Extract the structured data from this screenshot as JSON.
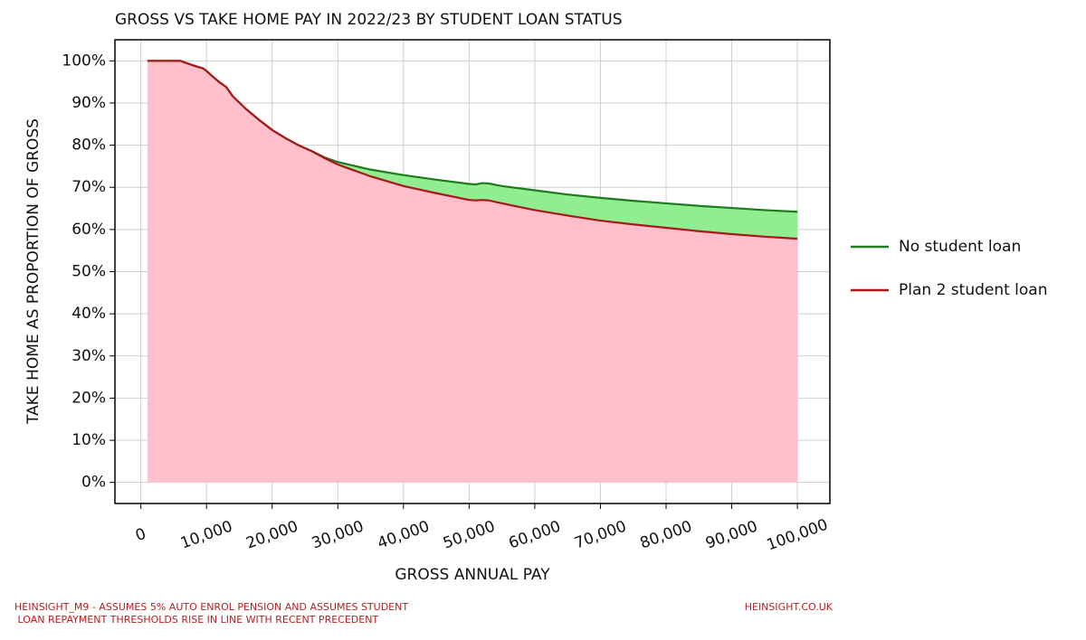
{
  "chart_data": {
    "type": "area",
    "title": "GROSS VS TAKE HOME PAY IN 2022/23 BY STUDENT LOAN STATUS",
    "x_label": "GROSS ANNUAL PAY",
    "y_label": "TAKE HOME AS PROPORTION OF GROSS",
    "x": [
      1000,
      6000,
      8000,
      9500,
      10000,
      11000,
      12000,
      13000,
      14000,
      16000,
      18000,
      20000,
      22000,
      24000,
      26000,
      28000,
      30000,
      35000,
      40000,
      45000,
      50000,
      51000,
      52000,
      53000,
      55000,
      60000,
      65000,
      70000,
      75000,
      80000,
      85000,
      90000,
      95000,
      100000
    ],
    "series": [
      {
        "name": "No student loan",
        "color": "#1f7a1f",
        "fill_color": "#90ee90",
        "values": [
          100,
          100,
          98.9,
          98.2,
          97.6,
          96.2,
          94.9,
          93.8,
          91.6,
          88.6,
          86.0,
          83.6,
          81.7,
          80.0,
          78.6,
          77.1,
          76.0,
          74.2,
          72.9,
          71.8,
          70.8,
          70.7,
          71.0,
          70.9,
          70.3,
          69.3,
          68.3,
          67.5,
          66.8,
          66.2,
          65.6,
          65.1,
          64.6,
          64.2
        ]
      },
      {
        "name": "Plan 2 student loan",
        "color": "#a81818",
        "fill_color": "#ffc0cb",
        "values": [
          100,
          100,
          98.9,
          98.2,
          97.6,
          96.2,
          94.9,
          93.8,
          91.6,
          88.6,
          86.0,
          83.6,
          81.7,
          80.0,
          78.6,
          76.9,
          75.4,
          72.6,
          70.3,
          68.6,
          67.0,
          66.9,
          67.0,
          66.9,
          66.2,
          64.6,
          63.3,
          62.1,
          61.2,
          60.4,
          59.6,
          58.9,
          58.3,
          57.8
        ]
      }
    ],
    "xlim": [
      -3950,
      104950
    ],
    "ylim": [
      -5,
      105
    ],
    "xticks": [
      0,
      {
        "value": 10000,
        "label": "10,000"
      },
      {
        "value": 20000,
        "label": "20,000"
      },
      {
        "value": 30000,
        "label": "30,000"
      },
      {
        "value": 40000,
        "label": "40,000"
      },
      {
        "value": 50000,
        "label": "50,000"
      },
      {
        "value": 60000,
        "label": "60,000"
      },
      {
        "value": 70000,
        "label": "70,000"
      },
      {
        "value": 80000,
        "label": "80,000"
      },
      {
        "value": 90000,
        "label": "90,000"
      },
      {
        "value": 100000,
        "label": "100,000"
      }
    ],
    "yticks": [
      {
        "value": 0,
        "label": "0%"
      },
      {
        "value": 10,
        "label": "10%"
      },
      {
        "value": 20,
        "label": "20%"
      },
      {
        "value": 30,
        "label": "30%"
      },
      {
        "value": 40,
        "label": "40%"
      },
      {
        "value": 50,
        "label": "50%"
      },
      {
        "value": 60,
        "label": "60%"
      },
      {
        "value": 70,
        "label": "70%"
      },
      {
        "value": 80,
        "label": "80%"
      },
      {
        "value": 90,
        "label": "90%"
      },
      {
        "value": 100,
        "label": "100%"
      }
    ],
    "grid": true,
    "legend": "right",
    "footnote": [
      "HEINSIGHT_M9 - ASSUMES 5% AUTO ENROL PENSION AND ASSUMES STUDENT",
      " LOAN REPAYMENT THRESHOLDS RISE IN LINE WITH RECENT PRECEDENT"
    ],
    "source": "HEINSIGHT.CO.UK"
  }
}
